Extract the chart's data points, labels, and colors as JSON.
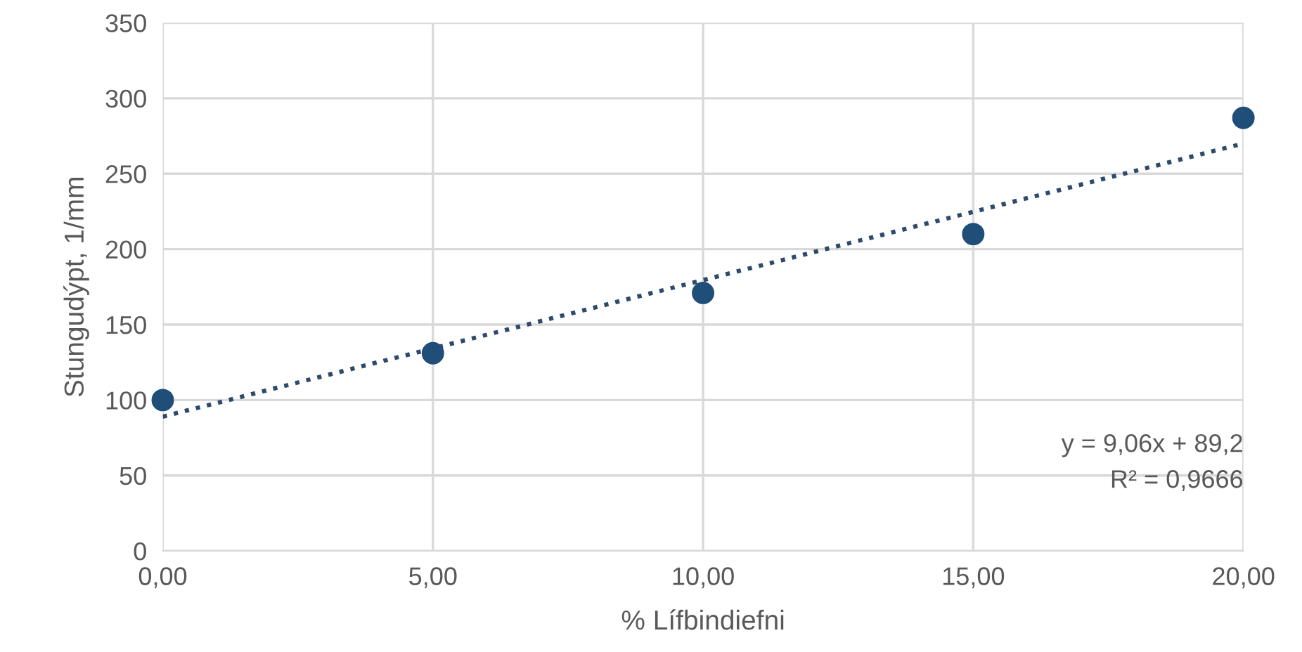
{
  "chart_data": {
    "type": "scatter",
    "xlabel": "% Lífbindiefni",
    "ylabel": "Stungudýpt, 1/mm",
    "x": [
      0,
      5,
      10,
      15,
      20
    ],
    "series": [
      {
        "color": "#1f4e79",
        "marker": "circle",
        "values": [
          100,
          131,
          171,
          210,
          287
        ]
      },
      {
        "type": "line",
        "x": [
          0,
          20
        ],
        "color": "#2e4a6b",
        "line_style": "dotted",
        "marker": "none",
        "values": [
          89,
          270
        ]
      }
    ],
    "xlim": [
      0,
      20
    ],
    "xticks": [
      {
        "value": 0,
        "label": "0,00"
      },
      {
        "value": 5,
        "label": "5,00"
      },
      {
        "value": 10,
        "label": "10,00"
      },
      {
        "value": 15,
        "label": "15,00"
      },
      {
        "value": 20,
        "label": "20,00"
      }
    ],
    "ylim": [
      0,
      350
    ],
    "yticks": [
      0,
      50,
      100,
      150,
      200,
      250,
      300,
      350
    ],
    "grid": true,
    "annotations": [
      "y = 9,06x + 89,2",
      "R² = 0,9666"
    ]
  }
}
